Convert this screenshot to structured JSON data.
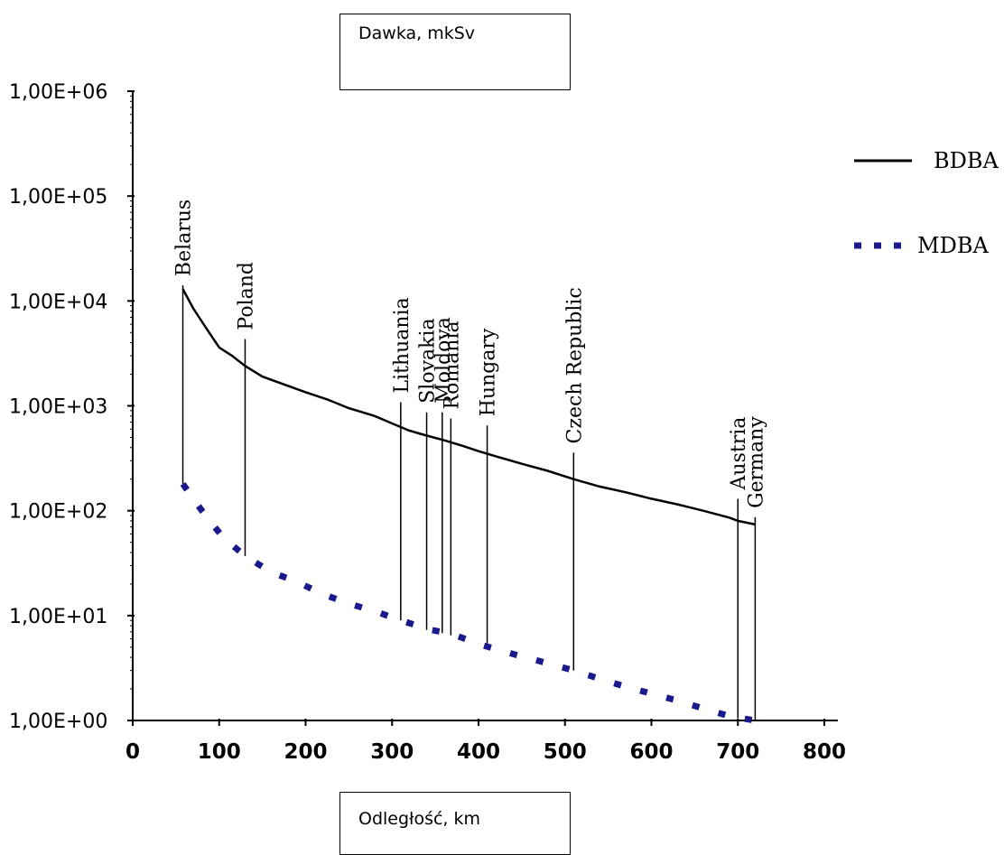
{
  "chart_data": {
    "type": "line",
    "ylabel": "Dawka, mkSv",
    "xlabel": "Odległość, km",
    "y_scale": "log",
    "ylim": [
      1,
      1000000
    ],
    "xlim": [
      0,
      800
    ],
    "y_tick_labels": [
      "1,00E+00",
      "1,00E+01",
      "1,00E+02",
      "1,00E+03",
      "1,00E+04",
      "1,00E+05",
      "1,00E+06"
    ],
    "y_tick_values": [
      1,
      10,
      100,
      1000,
      10000,
      100000,
      1000000
    ],
    "x_tick_labels": [
      "0",
      "100",
      "200",
      "300",
      "400",
      "500",
      "600",
      "700",
      "800"
    ],
    "x_tick_values": [
      0,
      100,
      200,
      300,
      400,
      500,
      600,
      700,
      800
    ],
    "grid": false,
    "legend_position": "right",
    "series": [
      {
        "name": "BDBA",
        "style": "solid",
        "color": "#000000",
        "x": [
          58,
          70,
          85,
          100,
          115,
          130,
          150,
          175,
          200,
          225,
          250,
          280,
          300,
          320,
          340,
          360,
          380,
          400,
          420,
          450,
          480,
          510,
          540,
          570,
          600,
          630,
          660,
          690,
          700,
          720
        ],
        "y": [
          13000,
          8500,
          5500,
          3600,
          3000,
          2400,
          1900,
          1600,
          1350,
          1150,
          950,
          800,
          680,
          580,
          520,
          470,
          420,
          370,
          330,
          280,
          240,
          200,
          170,
          150,
          130,
          115,
          100,
          86,
          80,
          74
        ]
      },
      {
        "name": "MDBA",
        "style": "dotted",
        "color": "#1a1a8c",
        "x": [
          58,
          80,
          105,
          130,
          160,
          190,
          220,
          250,
          280,
          310,
          345,
          365,
          380,
          405,
          440,
          475,
          510,
          540,
          570,
          600,
          630,
          660,
          690,
          720
        ],
        "y": [
          180,
          100,
          55,
          37,
          26,
          21,
          16,
          13,
          11,
          9,
          7.3,
          6.8,
          6.2,
          5.2,
          4.3,
          3.6,
          3.0,
          2.5,
          2.1,
          1.8,
          1.55,
          1.3,
          1.1,
          1.0
        ]
      }
    ],
    "annotations": [
      {
        "text": "Belarus",
        "x": 58,
        "y_top": 13000,
        "y_bottom": 180
      },
      {
        "text": "Poland",
        "x": 130,
        "y_top": 4000,
        "y_bottom": 37
      },
      {
        "text": "Lithuania",
        "x": 310,
        "y_top": 1000,
        "y_bottom": 9
      },
      {
        "text": "Slovakia",
        "x": 340,
        "y_top": 800,
        "y_bottom": 7.3
      },
      {
        "text": "Moldova",
        "x": 358,
        "y_top": 800,
        "y_bottom": 6.8
      },
      {
        "text": "Romania",
        "x": 368,
        "y_top": 700,
        "y_bottom": 6.5
      },
      {
        "text": "Hungary",
        "x": 410,
        "y_top": 600,
        "y_bottom": 5.2
      },
      {
        "text": "Czech Republic",
        "x": 510,
        "y_top": 330,
        "y_bottom": 3.0
      },
      {
        "text": "Austria",
        "x": 700,
        "y_top": 120,
        "y_bottom": 1.05
      },
      {
        "text": "Germany",
        "x": 720,
        "y_top": 80,
        "y_bottom": 1.0
      }
    ]
  }
}
